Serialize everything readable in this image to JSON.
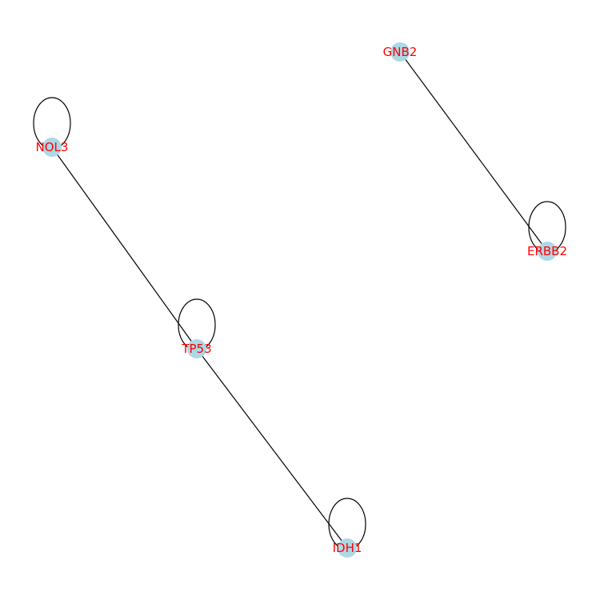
{
  "graph": {
    "node_color": "#add8e6",
    "label_color": "#ff0000",
    "edge_color": "#000000",
    "nodes": [
      {
        "id": "GNB2",
        "label": "GNB2",
        "self_loop": false
      },
      {
        "id": "ERBB2",
        "label": "ERBB2",
        "self_loop": true
      },
      {
        "id": "NOL3",
        "label": "NOL3",
        "self_loop": true
      },
      {
        "id": "TP53",
        "label": "TP53",
        "self_loop": true
      },
      {
        "id": "IDH1",
        "label": "IDH1",
        "self_loop": true
      }
    ],
    "edges": [
      {
        "source": "GNB2",
        "target": "ERBB2"
      },
      {
        "source": "NOL3",
        "target": "TP53"
      },
      {
        "source": "TP53",
        "target": "IDH1"
      }
    ]
  }
}
